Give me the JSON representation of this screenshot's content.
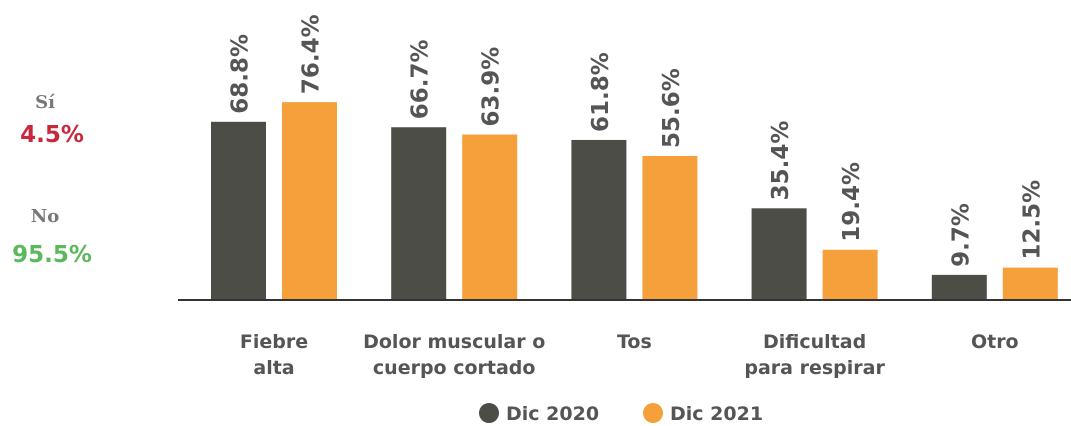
{
  "chart_data": {
    "type": "bar",
    "categories": [
      [
        "Fiebre",
        "alta"
      ],
      [
        "Dolor muscular o",
        "cuerpo cortado"
      ],
      [
        "Tos"
      ],
      [
        "Dificultad",
        "para respirar"
      ],
      [
        "Otro"
      ]
    ],
    "series": [
      {
        "name": "Dic 2020",
        "color": "#4d4d48",
        "values": [
          68.8,
          66.7,
          61.8,
          35.4,
          9.7
        ],
        "value_labels": [
          "68.8%",
          "66.7%",
          "61.8%",
          "35.4%",
          "9.7%"
        ]
      },
      {
        "name": "Dic 2021",
        "color": "#f5a03a",
        "values": [
          76.4,
          63.9,
          55.6,
          19.4,
          12.5
        ],
        "value_labels": [
          "76.4%",
          "63.9%",
          "55.6%",
          "19.4%",
          "12.5%"
        ]
      }
    ],
    "annotations": [
      {
        "label": "Sí",
        "text": "4.5%",
        "color": "#c8283c"
      },
      {
        "label": "No",
        "text": "95.5%",
        "color": "#5cb85c"
      }
    ]
  }
}
